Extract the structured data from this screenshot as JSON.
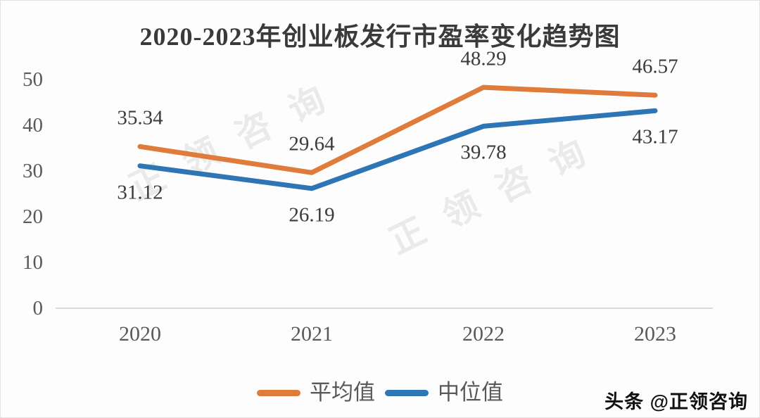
{
  "title": "2020-2023年创业板发行市盈率变化趋势图",
  "watermark": {
    "text": "正领咨询"
  },
  "credit": {
    "text": "头条 @正领咨询"
  },
  "legend": [
    {
      "label": "平均值",
      "color": "#E07C3B"
    },
    {
      "label": "中位值",
      "color": "#2E75B6"
    }
  ],
  "chart_data": {
    "type": "line",
    "title": "2020-2023年创业板发行市盈率变化趋势图",
    "categories": [
      "2020",
      "2021",
      "2022",
      "2023"
    ],
    "series": [
      {
        "name": "平均值",
        "color": "#E07C3B",
        "values": [
          35.34,
          29.64,
          48.29,
          46.57
        ]
      },
      {
        "name": "中位值",
        "color": "#2E75B6",
        "values": [
          31.12,
          26.19,
          39.78,
          43.17
        ]
      }
    ],
    "yticks": [
      0,
      10,
      20,
      30,
      40,
      50
    ],
    "ylim": [
      0,
      50
    ],
    "grid": false,
    "data_labels": true,
    "legend_position": "bottom",
    "axis_color": "#d9d9d9",
    "label_color": "#3b3b3b",
    "tick_color": "#595959"
  }
}
